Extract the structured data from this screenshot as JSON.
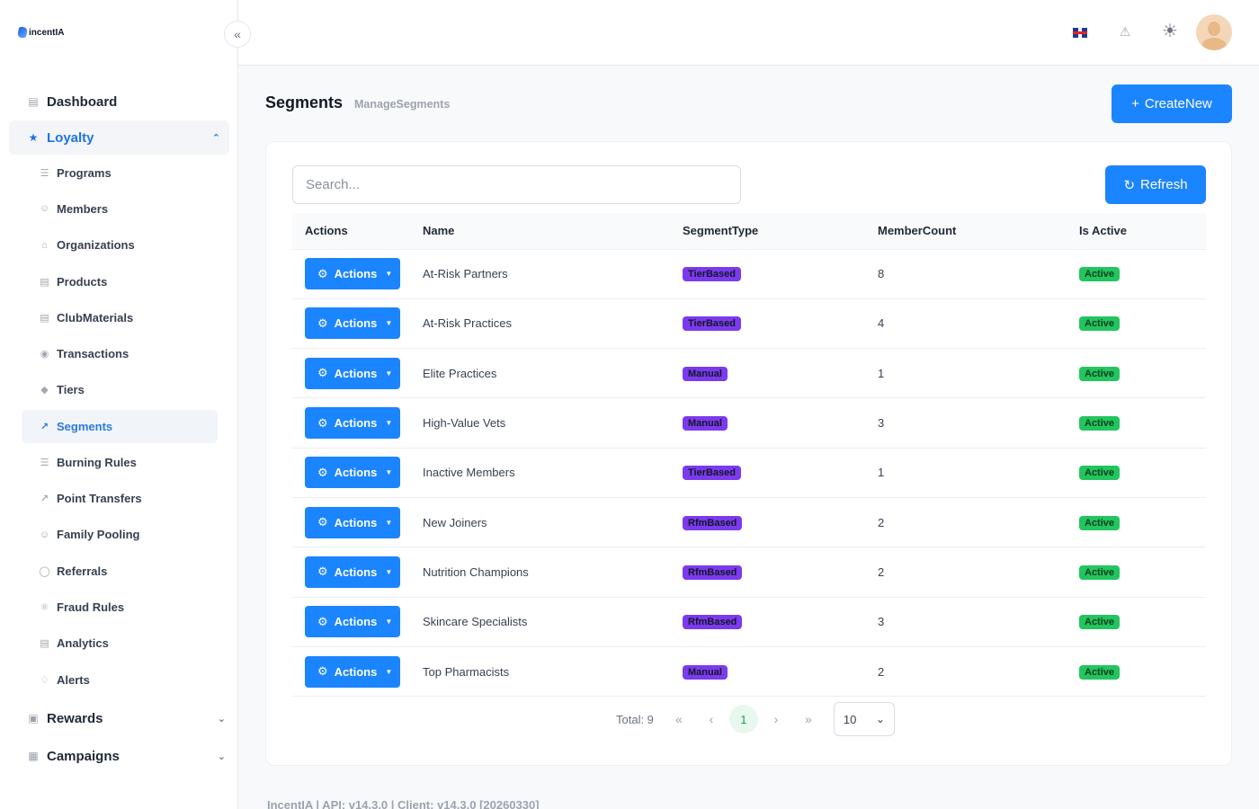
{
  "brand": {
    "name": "incentIA"
  },
  "sidebar": {
    "dashboard": "Dashboard",
    "loyalty": "Loyalty",
    "items": [
      {
        "label": "Programs",
        "icon": "list-icon"
      },
      {
        "label": "Members",
        "icon": "users-icon"
      },
      {
        "label": "Organizations",
        "icon": "home-icon"
      },
      {
        "label": "Products",
        "icon": "document-icon"
      },
      {
        "label": "ClubMaterials",
        "icon": "document-icon"
      },
      {
        "label": "Transactions",
        "icon": "coins-icon"
      },
      {
        "label": "Tiers",
        "icon": "layers-icon"
      },
      {
        "label": "Segments",
        "icon": "chart-line-icon",
        "active": true
      },
      {
        "label": "Burning Rules",
        "icon": "list-icon"
      },
      {
        "label": "Point Transfers",
        "icon": "arrows-icon"
      },
      {
        "label": "Family Pooling",
        "icon": "users-icon"
      },
      {
        "label": "Referrals",
        "icon": "share-icon"
      },
      {
        "label": "Fraud Rules",
        "icon": "shield-icon"
      },
      {
        "label": "Analytics",
        "icon": "chart-icon"
      },
      {
        "label": "Alerts",
        "icon": "bell-icon"
      }
    ],
    "rewards": "Rewards",
    "campaigns": "Campaigns"
  },
  "header": {
    "title": "Segments",
    "subtitle": "ManageSegments",
    "create_label": "CreateNew"
  },
  "toolbar": {
    "search_placeholder": "Search...",
    "refresh_label": "Refresh"
  },
  "table": {
    "columns": [
      "Actions",
      "Name",
      "SegmentType",
      "MemberCount",
      "Is Active"
    ],
    "action_label": "Actions",
    "rows": [
      {
        "name": "At-Risk Partners",
        "type": "TierBased",
        "count": "8",
        "status": "Active"
      },
      {
        "name": "At-Risk Practices",
        "type": "TierBased",
        "count": "4",
        "status": "Active"
      },
      {
        "name": "Elite Practices",
        "type": "Manual",
        "count": "1",
        "status": "Active"
      },
      {
        "name": "High-Value Vets",
        "type": "Manual",
        "count": "3",
        "status": "Active"
      },
      {
        "name": "Inactive Members",
        "type": "TierBased",
        "count": "1",
        "status": "Active"
      },
      {
        "name": "New Joiners",
        "type": "RfmBased",
        "count": "2",
        "status": "Active"
      },
      {
        "name": "Nutrition Champions",
        "type": "RfmBased",
        "count": "2",
        "status": "Active"
      },
      {
        "name": "Skincare Specialists",
        "type": "RfmBased",
        "count": "3",
        "status": "Active"
      },
      {
        "name": "Top Pharmacists",
        "type": "Manual",
        "count": "2",
        "status": "Active"
      }
    ]
  },
  "pagination": {
    "total": "Total: 9",
    "current_page": "1",
    "page_size": "10"
  },
  "footer": "IncentIA | API: v14.3.0 | Client: v14.3.0 [20260330]",
  "colors": {
    "primary": "#1b84ff",
    "type_badge": "#7c3aed",
    "active_badge": "#22c55e"
  }
}
